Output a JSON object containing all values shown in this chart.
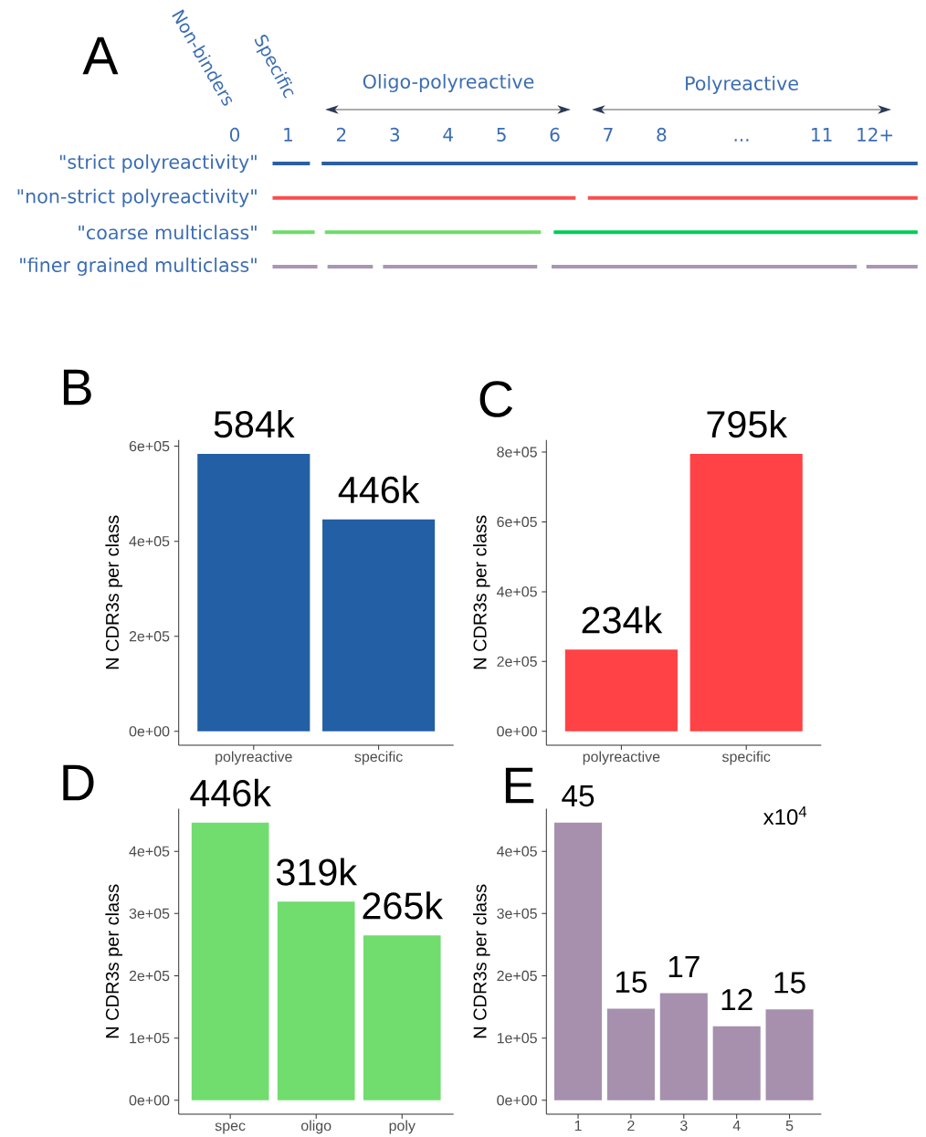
{
  "chart_data": [
    {
      "type": "bar",
      "orientation": "horizontal",
      "title": "A",
      "categories": [
        "\"strict polyreactivity\"",
        "\"non-strict polyreactivity\"",
        "\"coarse multiclass\"",
        "\"finer grained multiclass\""
      ],
      "series": [
        {
          "base": [
            0.71,
            0.71,
            0.71,
            0.71
          ],
          "values": [
            0.7,
            5.68,
            0.79,
            0.84
          ],
          "colors": [
            "#2a5fa3",
            "#ff4b4b",
            "#6fdc6a",
            "#a896b4"
          ]
        },
        {
          "base": [
            1.63,
            6.62,
            1.69,
            1.74
          ],
          "values": [
            11.17,
            6.18,
            4.05,
            0.85
          ],
          "colors": [
            "#2a5fa3",
            "#ff4b4b",
            "#6fdc6a",
            "#a896b4"
          ]
        },
        {
          "base": [
            null,
            null,
            5.98,
            2.78
          ],
          "values": [
            null,
            null,
            6.82,
            2.89
          ],
          "colors": [
            null,
            null,
            "#00cc55",
            "#a896b4"
          ]
        },
        {
          "base": [
            null,
            null,
            null,
            5.94
          ],
          "values": [
            null,
            null,
            null,
            5.72
          ],
          "colors": [
            null,
            null,
            null,
            "#a896b4"
          ]
        },
        {
          "base": [
            null,
            null,
            null,
            11.84
          ],
          "values": [
            null,
            null,
            null,
            0.96
          ],
          "colors": [
            null,
            null,
            null,
            "#a896b4"
          ]
        }
      ],
      "xlim": [
        0,
        12.8
      ],
      "xticks": [
        0,
        1,
        2,
        3,
        4,
        5,
        6,
        7,
        8,
        {
          "value": 9.5,
          "label": "..."
        },
        11,
        {
          "value": 12,
          "label": "12+"
        }
      ],
      "annotations": [
        "Non-binders",
        "Specific",
        "Oligo-polyreactive",
        "Polyreactive"
      ]
    },
    {
      "type": "bar",
      "title": "B",
      "categories": [
        "polyreactive",
        "specific"
      ],
      "values": [
        584000,
        446000
      ],
      "color": "#235fa4",
      "value_labels": [
        "584k",
        "446k"
      ],
      "ylabel": "N CDR3s per class",
      "ylim": [
        -29200,
        613200
      ],
      "yticks": [
        {
          "value": 0,
          "label": "0e+00"
        },
        {
          "value": 200000,
          "label": "2e+05"
        },
        {
          "value": 400000,
          "label": "4e+05"
        },
        {
          "value": 600000,
          "label": "6e+05"
        }
      ]
    },
    {
      "type": "bar",
      "title": "C",
      "categories": [
        "polyreactive",
        "specific"
      ],
      "values": [
        234000,
        795000
      ],
      "color": "#ff4245",
      "value_labels": [
        "234k",
        "795k"
      ],
      "ylabel": "N CDR3s per class",
      "ylim": [
        -39750,
        834750
      ],
      "yticks": [
        {
          "value": 0,
          "label": "0e+00"
        },
        {
          "value": 200000,
          "label": "2e+05"
        },
        {
          "value": 400000,
          "label": "4e+05"
        },
        {
          "value": 600000,
          "label": "6e+05"
        },
        {
          "value": 800000,
          "label": "8e+05"
        }
      ]
    },
    {
      "type": "bar",
      "title": "D",
      "categories": [
        "spec",
        "oligo",
        "poly"
      ],
      "values": [
        446000,
        319000,
        265000
      ],
      "color": "#70dd6e",
      "value_labels": [
        "446k",
        "319k",
        "265k"
      ],
      "ylabel": "N CDR3s per class",
      "ylim": [
        -22300,
        468300
      ],
      "yticks": [
        {
          "value": 0,
          "label": "0e+00"
        },
        {
          "value": 100000,
          "label": "1e+05"
        },
        {
          "value": 200000,
          "label": "2e+05"
        },
        {
          "value": 300000,
          "label": "3e+05"
        },
        {
          "value": 400000,
          "label": "4e+05"
        }
      ]
    },
    {
      "type": "bar",
      "title": "E",
      "categories": [
        "1",
        "2",
        "3",
        "4",
        "5"
      ],
      "values": [
        446000,
        147000,
        172000,
        119000,
        146000
      ],
      "color": "#a690ae",
      "annotations": [
        "x10$^{4}$",
        {
          "text": "45",
          "x": "1",
          "y": 446000
        },
        {
          "text": "15",
          "x": "2",
          "y": 147000
        },
        {
          "text": "17",
          "x": "3",
          "y": 172000
        },
        {
          "text": "12",
          "x": "4",
          "y": 119000
        },
        {
          "text": "15",
          "x": "5",
          "y": 146000
        }
      ],
      "ylabel": "N CDR3s per class",
      "ylim": [
        -22300,
        468300
      ],
      "yticks": [
        {
          "value": 0,
          "label": "0e+00"
        },
        {
          "value": 100000,
          "label": "1e+05"
        },
        {
          "value": 200000,
          "label": "2e+05"
        },
        {
          "value": 300000,
          "label": "3e+05"
        },
        {
          "value": 400000,
          "label": "4e+05"
        }
      ]
    }
  ]
}
